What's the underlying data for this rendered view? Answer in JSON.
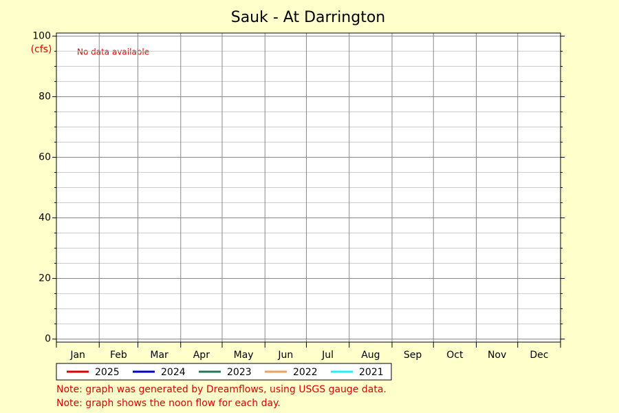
{
  "chart_data": {
    "type": "line",
    "title": "Sauk - At Darrington",
    "y_label": "(cfs)",
    "annotation": "No data available",
    "categories": [
      "Jan",
      "Feb",
      "Mar",
      "Apr",
      "May",
      "Jun",
      "Jul",
      "Aug",
      "Sep",
      "Oct",
      "Nov",
      "Dec"
    ],
    "series": [
      {
        "name": "2025",
        "color": "#dd0000",
        "values": [
          null,
          null,
          null,
          null,
          null,
          null,
          null,
          null,
          null,
          null,
          null,
          null
        ]
      },
      {
        "name": "2024",
        "color": "#0000bb",
        "values": [
          null,
          null,
          null,
          null,
          null,
          null,
          null,
          null,
          null,
          null,
          null,
          null
        ]
      },
      {
        "name": "2023",
        "color": "#227755",
        "values": [
          null,
          null,
          null,
          null,
          null,
          null,
          null,
          null,
          null,
          null,
          null,
          null
        ]
      },
      {
        "name": "2022",
        "color": "#f0a060",
        "values": [
          null,
          null,
          null,
          null,
          null,
          null,
          null,
          null,
          null,
          null,
          null,
          null
        ]
      },
      {
        "name": "2021",
        "color": "#22eeff",
        "values": [
          null,
          null,
          null,
          null,
          null,
          null,
          null,
          null,
          null,
          null,
          null,
          null
        ]
      }
    ],
    "ylim": [
      -1,
      101
    ],
    "yticks": [
      0,
      20,
      40,
      60,
      80,
      100
    ],
    "grid": true,
    "notes": [
      "Note: graph was generated by Dreamflows, using USGS gauge data.",
      "Note: graph shows the noon flow for each day."
    ]
  }
}
